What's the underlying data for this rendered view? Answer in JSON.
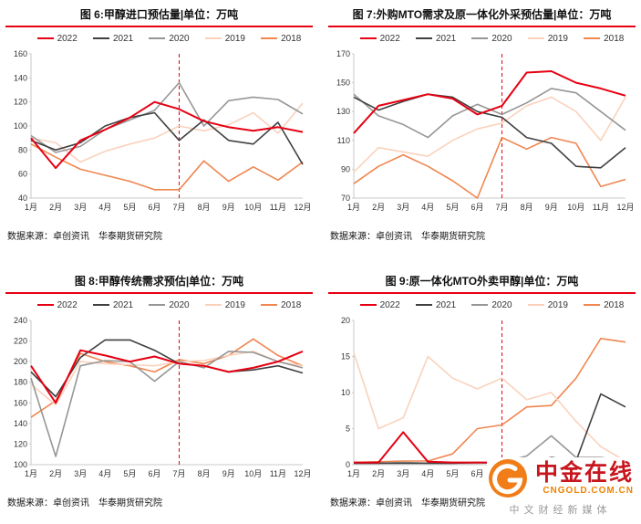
{
  "page": {
    "source_text": "数据来源：卓创资讯　华泰期货研究院"
  },
  "logo": {
    "brand": "中金在线",
    "domain": "CNGOLD.COM.CN",
    "tagline": "中文财经新媒体"
  },
  "colors": {
    "accent_red": "#e60012",
    "series_2022": "#e60012",
    "series_2021": "#404040",
    "series_2020": "#969696",
    "series_2019": "#fad2bc",
    "series_2018": "#f08650"
  },
  "chart_data": [
    {
      "id": "fig6",
      "type": "line",
      "title": "图 6:甲醇进口预估量|单位：万吨",
      "xlabel": "",
      "ylabel": "",
      "grid": false,
      "legend_position": "top",
      "ylim": [
        40,
        160
      ],
      "ytick_step": 20,
      "dashed_x": "7月",
      "divider_color": "#e60012",
      "x": [
        "1月",
        "2月",
        "3月",
        "4月",
        "5月",
        "6月",
        "7月",
        "8月",
        "9月",
        "10月",
        "11月",
        "12月"
      ],
      "series": [
        {
          "name": "2022",
          "color": "#e60012",
          "values": [
            90,
            65,
            88,
            97,
            107,
            120,
            114,
            104,
            99,
            96,
            99,
            95
          ]
        },
        {
          "name": "2021",
          "color": "#404040",
          "values": [
            88,
            80,
            86,
            100,
            107,
            111,
            88,
            105,
            88,
            85,
            103,
            68
          ]
        },
        {
          "name": "2020",
          "color": "#969696",
          "values": [
            92,
            78,
            83,
            97,
            105,
            113,
            136,
            100,
            121,
            124,
            122,
            110
          ]
        },
        {
          "name": "2019",
          "color": "#fad2bc",
          "values": [
            90,
            86,
            70,
            79,
            85,
            90,
            100,
            96,
            101,
            111,
            94,
            119
          ]
        },
        {
          "name": "2018",
          "color": "#f08650",
          "values": [
            85,
            74,
            64,
            59,
            54,
            47,
            47,
            71,
            54,
            66,
            55,
            70
          ]
        }
      ]
    },
    {
      "id": "fig7",
      "type": "line",
      "title": "图 7:外购MTO需求及原一体化外采预估量|单位：万吨",
      "xlabel": "",
      "ylabel": "",
      "grid": false,
      "legend_position": "top",
      "ylim": [
        70,
        170
      ],
      "ytick_step": 20,
      "dashed_x": "7月",
      "divider_color": "#e60012",
      "x": [
        "1月",
        "2月",
        "3月",
        "4月",
        "5月",
        "6月",
        "7月",
        "8月",
        "9月",
        "10月",
        "11月",
        "12月"
      ],
      "series": [
        {
          "name": "2022",
          "color": "#e60012",
          "values": [
            115,
            134,
            138,
            142,
            139,
            128,
            134,
            157,
            158,
            150,
            146,
            141
          ]
        },
        {
          "name": "2021",
          "color": "#404040",
          "values": [
            140,
            131,
            137,
            142,
            140,
            130,
            126,
            112,
            108,
            92,
            91,
            105
          ]
        },
        {
          "name": "2020",
          "color": "#969696",
          "values": [
            142,
            127,
            121,
            112,
            127,
            135,
            128,
            136,
            146,
            143,
            130,
            117
          ]
        },
        {
          "name": "2019",
          "color": "#fad2bc",
          "values": [
            88,
            105,
            102,
            99,
            110,
            118,
            122,
            134,
            140,
            130,
            110,
            140
          ]
        },
        {
          "name": "2018",
          "color": "#f08650",
          "values": [
            80,
            92,
            100,
            92,
            82,
            70,
            112,
            104,
            112,
            108,
            78,
            83
          ]
        }
      ]
    },
    {
      "id": "fig8",
      "type": "line",
      "title": "图 8:甲醇传统需求预估|单位：万吨",
      "xlabel": "",
      "ylabel": "",
      "grid": false,
      "legend_position": "top",
      "ylim": [
        100,
        240
      ],
      "ytick_step": 20,
      "dashed_x": "7月",
      "divider_color": "#e60012",
      "x": [
        "1月",
        "2月",
        "3月",
        "4月",
        "5月",
        "6月",
        "7月",
        "8月",
        "9月",
        "10月",
        "11月",
        "12月"
      ],
      "series": [
        {
          "name": "2022",
          "color": "#e60012",
          "values": [
            196,
            160,
            211,
            206,
            200,
            205,
            198,
            196,
            190,
            194,
            200,
            210
          ]
        },
        {
          "name": "2021",
          "color": "#404040",
          "values": [
            190,
            166,
            204,
            221,
            221,
            211,
            198,
            196,
            190,
            192,
            196,
            189
          ]
        },
        {
          "name": "2020",
          "color": "#969696",
          "values": [
            184,
            108,
            196,
            201,
            200,
            181,
            200,
            194,
            210,
            209,
            200,
            194
          ]
        },
        {
          "name": "2019",
          "color": "#fad2bc",
          "values": [
            178,
            158,
            200,
            198,
            197,
            196,
            200,
            201,
            206,
            210,
            200,
            196
          ]
        },
        {
          "name": "2018",
          "color": "#f08650",
          "values": [
            146,
            162,
            208,
            200,
            196,
            190,
            202,
            198,
            206,
            222,
            206,
            196
          ]
        }
      ]
    },
    {
      "id": "fig9",
      "type": "line",
      "title": "图 9:原一体化MTO外卖甲醇|单位：万吨",
      "xlabel": "",
      "ylabel": "",
      "grid": false,
      "legend_position": "top",
      "ylim": [
        0,
        20
      ],
      "ytick_step": 5,
      "dashed_x": "7月",
      "divider_color": "#e60012",
      "x": [
        "1月",
        "2月",
        "3月",
        "4月",
        "5月",
        "6月",
        "7月",
        "8月",
        "9月",
        "10月",
        "11月",
        "12月"
      ],
      "series": [
        {
          "name": "2022",
          "color": "#e60012",
          "values": [
            0.3,
            0.3,
            4.5,
            0.4,
            0.3,
            0.3,
            0.3,
            0.3,
            0.3,
            0.3,
            0.6,
            0.3
          ]
        },
        {
          "name": "2021",
          "color": "#404040",
          "values": [
            0.2,
            0.2,
            0.2,
            0.2,
            0.2,
            0.3,
            0.2,
            0.3,
            1.0,
            0.5,
            9.8,
            8.0
          ]
        },
        {
          "name": "2020",
          "color": "#969696",
          "values": [
            0.2,
            0.2,
            0.3,
            0.2,
            0.2,
            0.2,
            0.3,
            1.2,
            4.0,
            1.0,
            1.0,
            0.5
          ]
        },
        {
          "name": "2019",
          "color": "#fad2bc",
          "values": [
            15.5,
            5.0,
            6.5,
            15.0,
            12.0,
            10.5,
            12.0,
            9.0,
            10.0,
            6.0,
            2.5,
            0.5
          ]
        },
        {
          "name": "2018",
          "color": "#f08650",
          "values": [
            0.3,
            0.4,
            0.5,
            0.5,
            1.5,
            5.0,
            5.5,
            8.0,
            8.2,
            12.0,
            17.5,
            17.0
          ]
        }
      ]
    }
  ]
}
